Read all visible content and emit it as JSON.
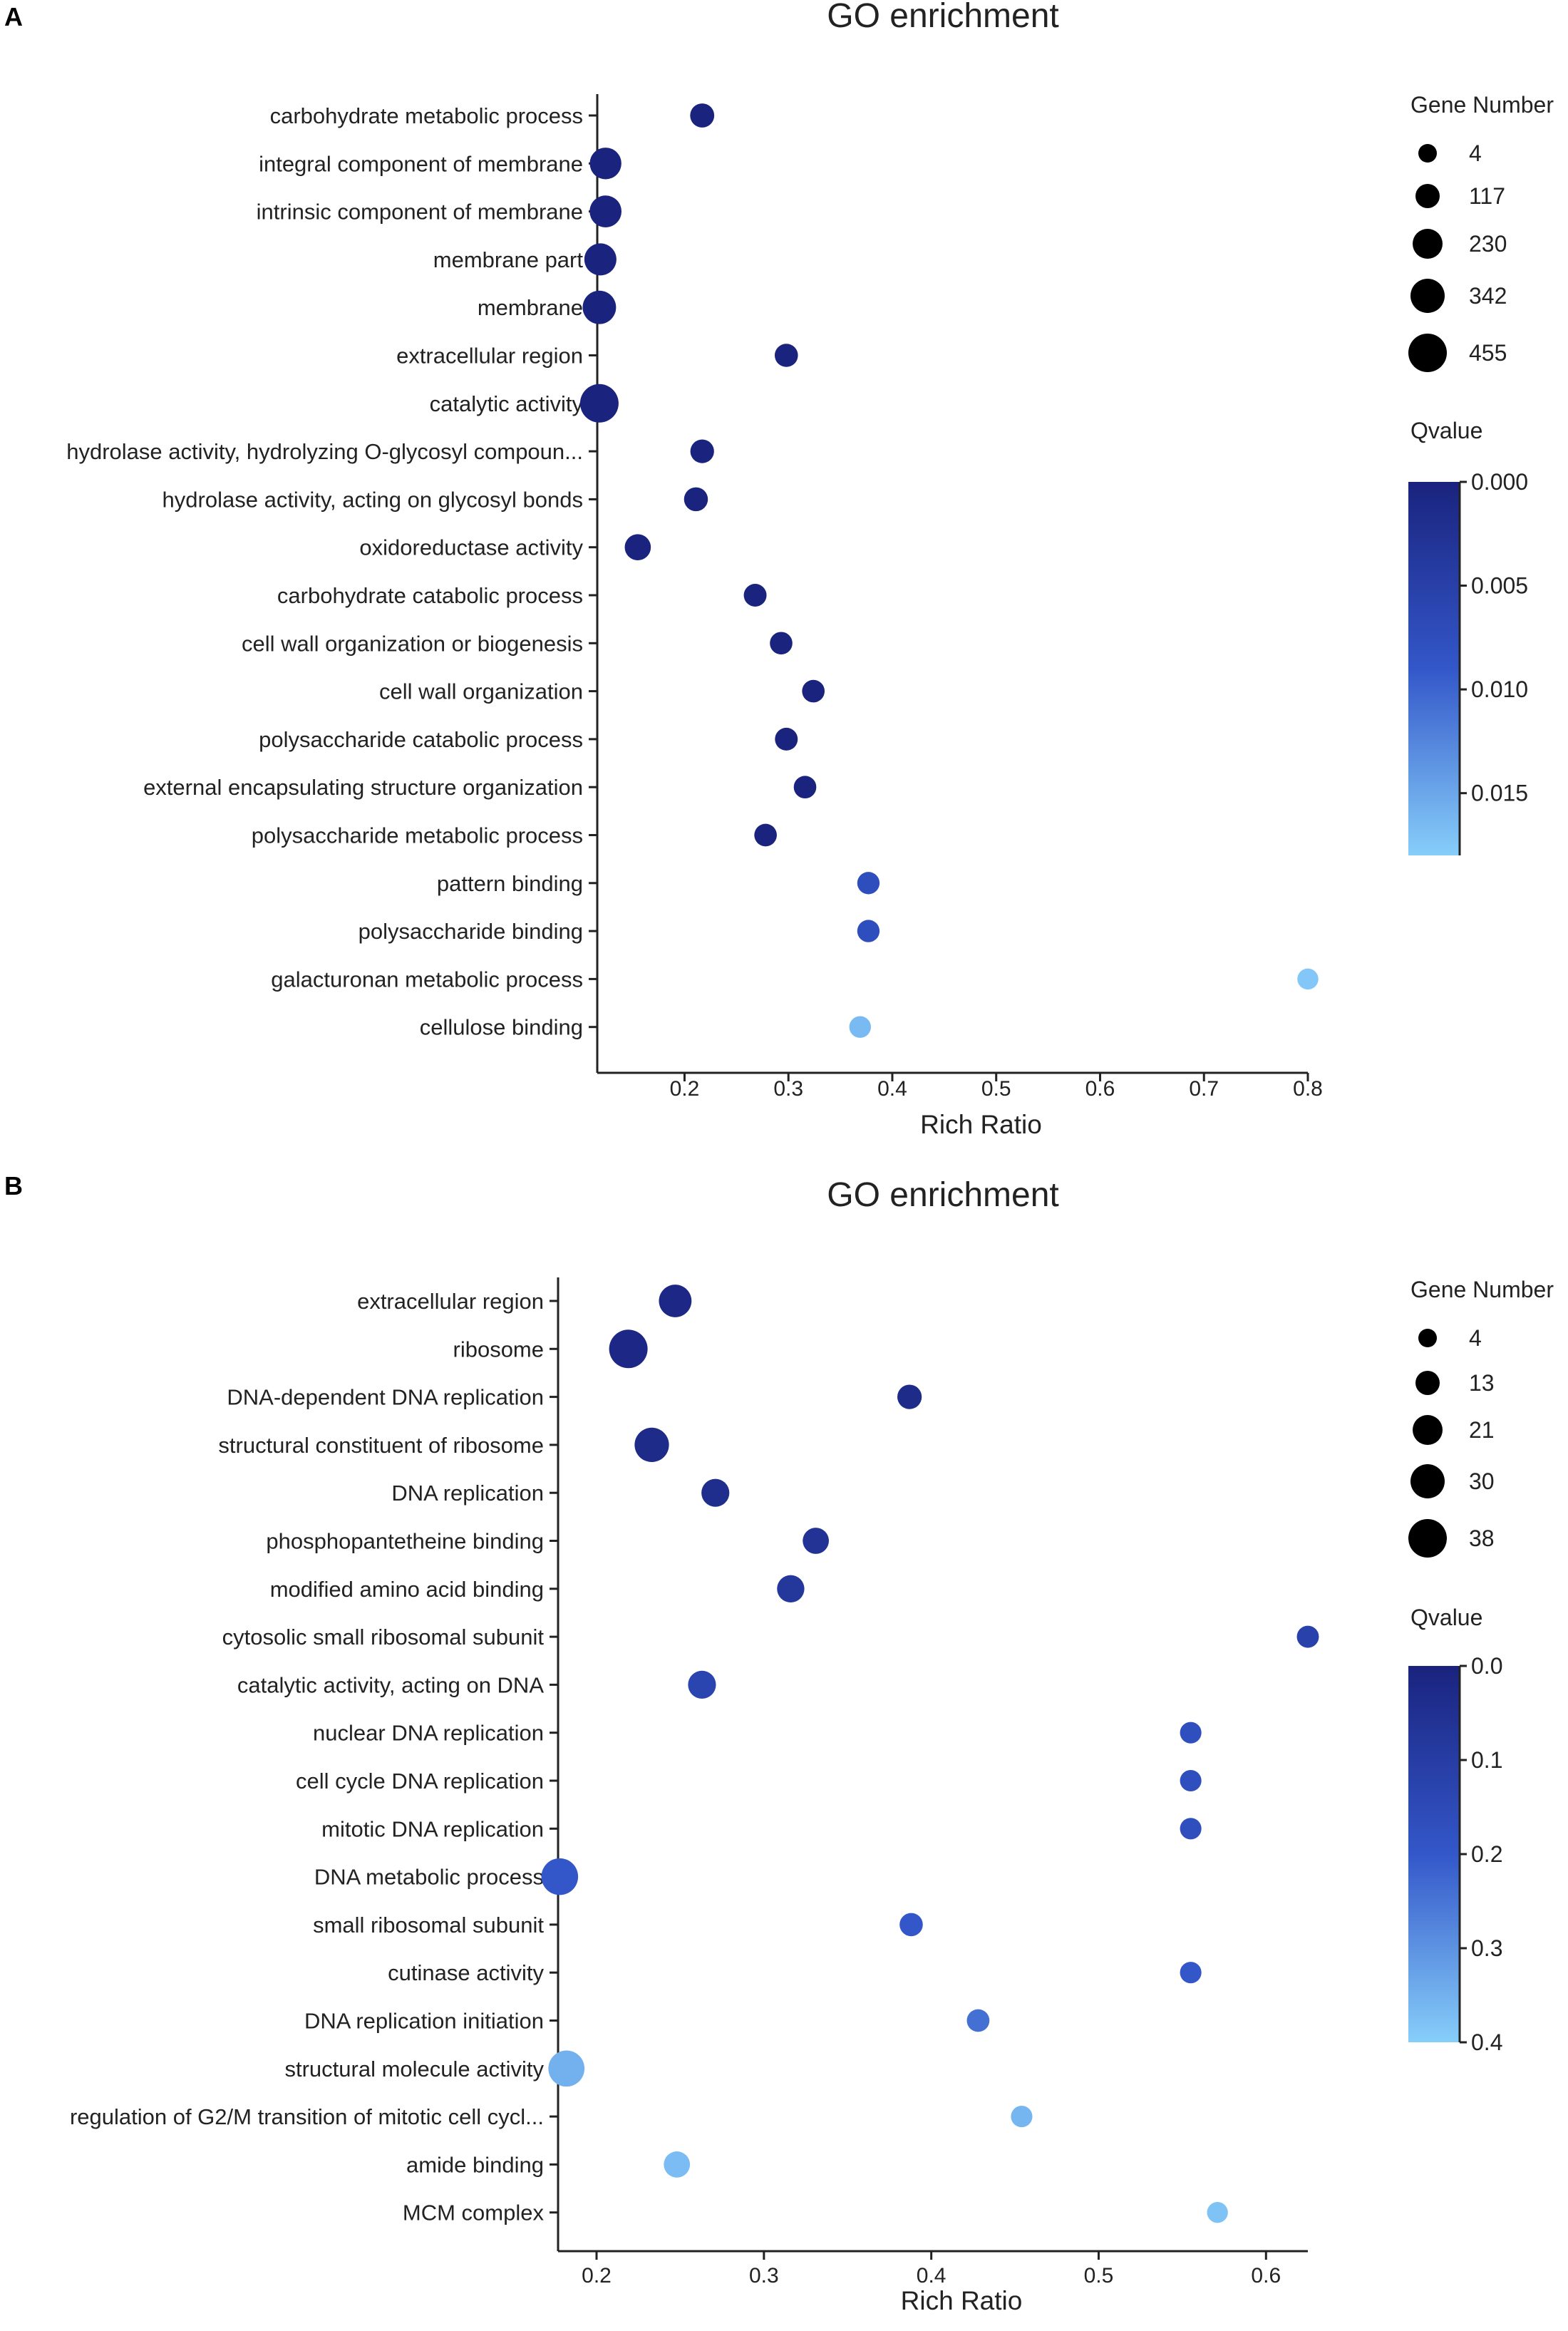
{
  "chart_data": [
    {
      "panel": "A",
      "type": "scatter",
      "title": "GO enrichment",
      "xlabel": "Rich Ratio",
      "xlim": [
        0.116,
        0.8
      ],
      "xticks": [
        0.2,
        0.3,
        0.4,
        0.5,
        0.6,
        0.7,
        0.8
      ],
      "xtick_labels": [
        "0.2",
        "0.3",
        "0.4",
        "0.5",
        "0.6",
        "0.7",
        "0.8"
      ],
      "terms": [
        {
          "term": "carbohydrate metabolic process",
          "rich_ratio": 0.217,
          "gene_number": 130,
          "qvalue": 0.0
        },
        {
          "term": "integral component of membrane",
          "rich_ratio": 0.124,
          "gene_number": 300,
          "qvalue": 0.0
        },
        {
          "term": "intrinsic component of membrane",
          "rich_ratio": 0.124,
          "gene_number": 305,
          "qvalue": 0.0
        },
        {
          "term": "membrane part",
          "rich_ratio": 0.119,
          "gene_number": 310,
          "qvalue": 0.0
        },
        {
          "term": "membrane",
          "rich_ratio": 0.118,
          "gene_number": 340,
          "qvalue": 0.0
        },
        {
          "term": "extracellular region",
          "rich_ratio": 0.298,
          "gene_number": 110,
          "qvalue": 0.0
        },
        {
          "term": "catalytic activity",
          "rich_ratio": 0.118,
          "gene_number": 455,
          "qvalue": 0.0
        },
        {
          "term": "hydrolase activity, hydrolyzing O-glycosyl compoun...",
          "rich_ratio": 0.217,
          "gene_number": 120,
          "qvalue": 0.0
        },
        {
          "term": "hydrolase activity, acting on glycosyl bonds",
          "rich_ratio": 0.211,
          "gene_number": 125,
          "qvalue": 0.0
        },
        {
          "term": "oxidoreductase activity",
          "rich_ratio": 0.155,
          "gene_number": 175,
          "qvalue": 0.0
        },
        {
          "term": "carbohydrate catabolic process",
          "rich_ratio": 0.268,
          "gene_number": 100,
          "qvalue": 0.0
        },
        {
          "term": "cell wall organization or biogenesis",
          "rich_ratio": 0.293,
          "gene_number": 95,
          "qvalue": 0.0
        },
        {
          "term": "cell wall organization",
          "rich_ratio": 0.324,
          "gene_number": 95,
          "qvalue": 0.0
        },
        {
          "term": "polysaccharide catabolic process",
          "rich_ratio": 0.298,
          "gene_number": 100,
          "qvalue": 0.0
        },
        {
          "term": "external encapsulating structure organization",
          "rich_ratio": 0.316,
          "gene_number": 95,
          "qvalue": 0.0
        },
        {
          "term": "polysaccharide metabolic process",
          "rich_ratio": 0.278,
          "gene_number": 95,
          "qvalue": 0.0
        },
        {
          "term": "pattern binding",
          "rich_ratio": 0.377,
          "gene_number": 90,
          "qvalue": 0.0075
        },
        {
          "term": "polysaccharide binding",
          "rich_ratio": 0.377,
          "gene_number": 90,
          "qvalue": 0.0075
        },
        {
          "term": "galacturonan metabolic process",
          "rich_ratio": 0.8,
          "gene_number": 60,
          "qvalue": 0.0175
        },
        {
          "term": "cellulose binding",
          "rich_ratio": 0.369,
          "gene_number": 75,
          "qvalue": 0.0165
        }
      ],
      "size_legend": {
        "title": "Gene Number",
        "values": [
          4,
          117,
          230,
          342,
          455
        ],
        "labels": [
          "4",
          "117",
          "230",
          "342",
          "455"
        ]
      },
      "color_legend": {
        "title": "Qvalue",
        "range": [
          0.0,
          0.018
        ],
        "ticks": [
          0.0,
          0.005,
          0.01,
          0.015
        ],
        "tick_labels": [
          "0.000",
          "0.005",
          "0.010",
          "0.015"
        ]
      }
    },
    {
      "panel": "B",
      "type": "scatter",
      "title": "GO enrichment",
      "xlabel": "Rich Ratio",
      "xlim": [
        0.177,
        0.625
      ],
      "xticks": [
        0.2,
        0.3,
        0.4,
        0.5,
        0.6
      ],
      "xtick_labels": [
        "0.2",
        "0.3",
        "0.4",
        "0.5",
        "0.6"
      ],
      "terms": [
        {
          "term": "extracellular region",
          "rich_ratio": 0.247,
          "gene_number": 28,
          "qvalue": 0.02
        },
        {
          "term": "ribosome",
          "rich_ratio": 0.219,
          "gene_number": 38,
          "qvalue": 0.02
        },
        {
          "term": "DNA-dependent DNA replication",
          "rich_ratio": 0.387,
          "gene_number": 14,
          "qvalue": 0.03
        },
        {
          "term": "structural constituent of ribosome",
          "rich_ratio": 0.233,
          "gene_number": 31,
          "qvalue": 0.03
        },
        {
          "term": "DNA replication",
          "rich_ratio": 0.271,
          "gene_number": 20,
          "qvalue": 0.04
        },
        {
          "term": "phosphopantetheine binding",
          "rich_ratio": 0.331,
          "gene_number": 17,
          "qvalue": 0.06
        },
        {
          "term": "modified amino acid binding",
          "rich_ratio": 0.316,
          "gene_number": 19,
          "qvalue": 0.08
        },
        {
          "term": "cytosolic small ribosomal subunit",
          "rich_ratio": 0.625,
          "gene_number": 10,
          "qvalue": 0.12
        },
        {
          "term": "catalytic activity, acting on DNA",
          "rich_ratio": 0.263,
          "gene_number": 20,
          "qvalue": 0.13
        },
        {
          "term": "nuclear DNA replication",
          "rich_ratio": 0.555,
          "gene_number": 9,
          "qvalue": 0.17
        },
        {
          "term": "cell cycle DNA replication",
          "rich_ratio": 0.555,
          "gene_number": 9,
          "qvalue": 0.17
        },
        {
          "term": "mitotic DNA replication",
          "rich_ratio": 0.555,
          "gene_number": 9,
          "qvalue": 0.17
        },
        {
          "term": "DNA metabolic process",
          "rich_ratio": 0.178,
          "gene_number": 35,
          "qvalue": 0.2
        },
        {
          "term": "small ribosomal subunit",
          "rich_ratio": 0.388,
          "gene_number": 12,
          "qvalue": 0.2
        },
        {
          "term": "cutinase activity",
          "rich_ratio": 0.555,
          "gene_number": 9,
          "qvalue": 0.2
        },
        {
          "term": "DNA replication initiation",
          "rich_ratio": 0.428,
          "gene_number": 11,
          "qvalue": 0.24
        },
        {
          "term": "structural molecule activity",
          "rich_ratio": 0.182,
          "gene_number": 34,
          "qvalue": 0.35
        },
        {
          "term": "regulation of G2/M transition of mitotic cell cycl...",
          "rich_ratio": 0.454,
          "gene_number": 9,
          "qvalue": 0.36
        },
        {
          "term": "amide binding",
          "rich_ratio": 0.248,
          "gene_number": 17,
          "qvalue": 0.37
        },
        {
          "term": "MCM complex",
          "rich_ratio": 0.571,
          "gene_number": 8,
          "qvalue": 0.38
        }
      ],
      "size_legend": {
        "title": "Gene Number",
        "values": [
          4,
          13,
          21,
          30,
          38
        ],
        "labels": [
          "4",
          "13",
          "21",
          "30",
          "38"
        ]
      },
      "color_legend": {
        "title": "Qvalue",
        "range": [
          0.0,
          0.4
        ],
        "ticks": [
          0.0,
          0.1,
          0.2,
          0.3,
          0.4
        ],
        "tick_labels": [
          "0.0",
          "0.1",
          "0.2",
          "0.3",
          "0.4"
        ]
      }
    }
  ],
  "panel_labels": [
    "A",
    "B"
  ],
  "colors": {
    "low": "#1a237e",
    "mid": "#3357c9",
    "high": "#87cefa",
    "axis": "#222222"
  }
}
